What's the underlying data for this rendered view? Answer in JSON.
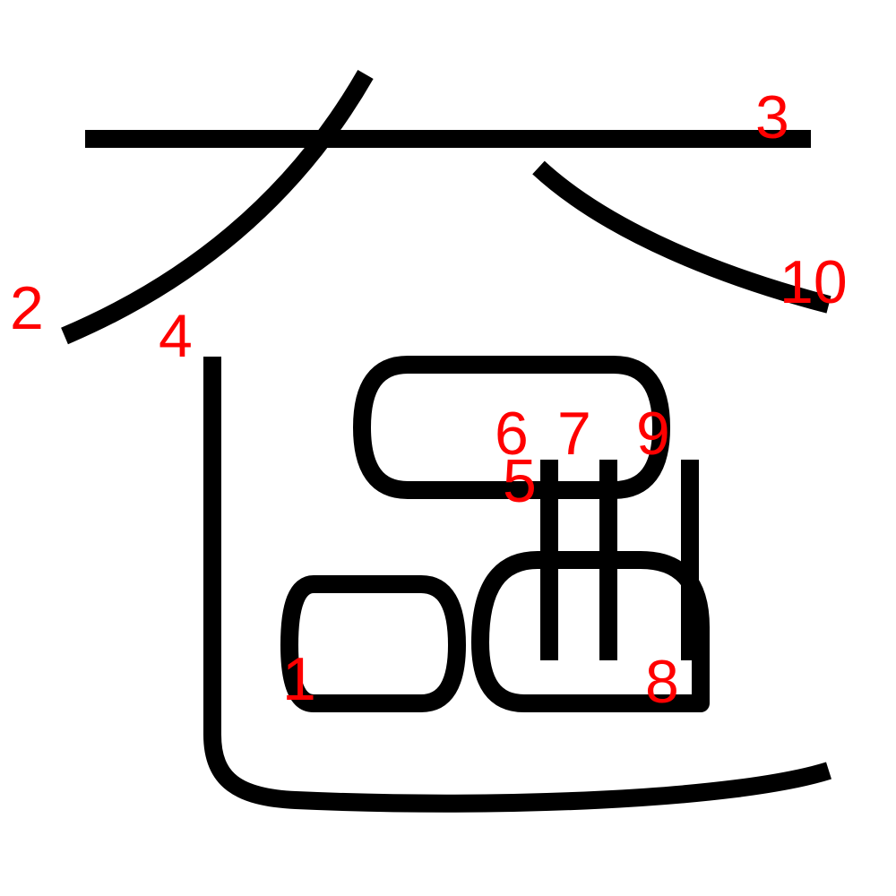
{
  "colors": {
    "stroke": "#000000",
    "number": "#ff0000",
    "background": "#ffffff"
  },
  "stroke_numbers": [
    "1",
    "2",
    "3",
    "4",
    "5",
    "6",
    "7",
    "8",
    "9",
    "10"
  ]
}
